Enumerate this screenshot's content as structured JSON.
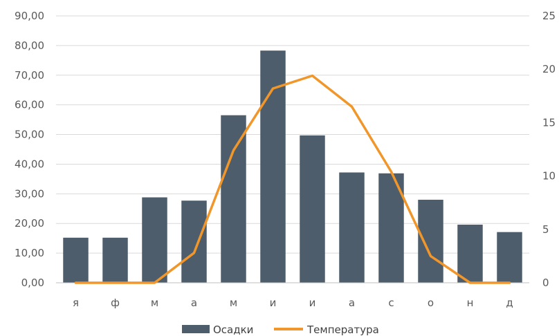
{
  "chart_data": {
    "type": "bar",
    "categories": [
      "я",
      "ф",
      "м",
      "а",
      "м",
      "и",
      "и",
      "а",
      "с",
      "о",
      "н",
      "д"
    ],
    "series": [
      {
        "name": "Осадки",
        "type": "bar",
        "axis": "left",
        "color": "#4d5d6b",
        "values": [
          15.2,
          15.2,
          28.8,
          27.7,
          56.5,
          78.3,
          49.7,
          37.2,
          36.9,
          28.0,
          19.6,
          17.1
        ]
      },
      {
        "name": "Температура",
        "type": "line",
        "axis": "right",
        "color": "#f0962a",
        "values": [
          0,
          0,
          0,
          2.8,
          12.4,
          18.2,
          19.4,
          16.5,
          10.4,
          2.5,
          0,
          0
        ]
      }
    ],
    "y_left": {
      "ylim": [
        0,
        90
      ],
      "ticks": [
        "0,00",
        "10,00",
        "20,00",
        "30,00",
        "40,00",
        "50,00",
        "60,00",
        "70,00",
        "80,00",
        "90,00"
      ]
    },
    "y_right": {
      "ylim": [
        0,
        25
      ],
      "ticks": [
        "0",
        "5",
        "10",
        "15",
        "20",
        "25"
      ]
    },
    "grid": true,
    "legend": "bottom"
  }
}
